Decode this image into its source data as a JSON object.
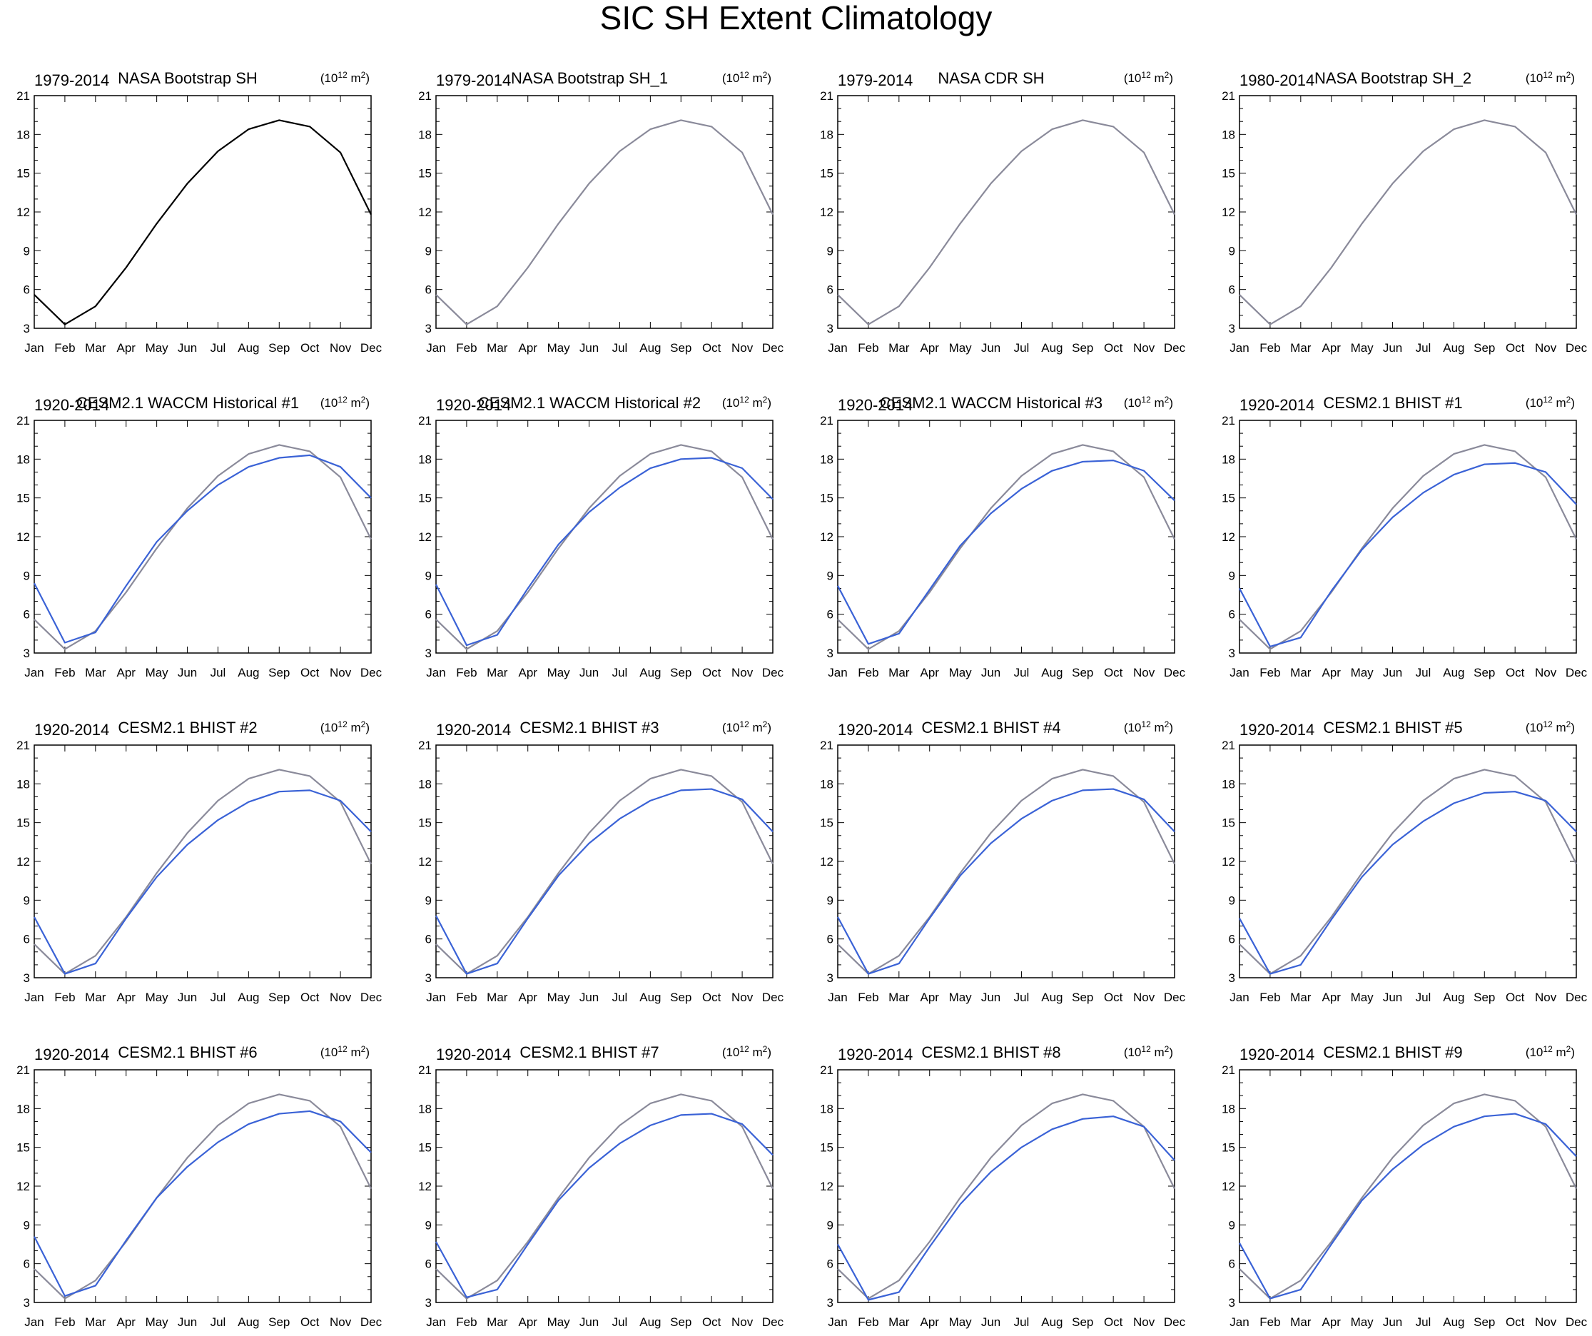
{
  "title": "SIC SH Extent Climatology",
  "units_label": {
    "base": "(10",
    "exp": "12",
    "unit": " m",
    "unit_exp": "2",
    "close": ")"
  },
  "colors": {
    "reference": "#8a8a9a",
    "model": "#3a62d6",
    "reference_first": "#000000",
    "grid_axis": "#000000"
  },
  "chart_data": {
    "type": "line",
    "layout": "4x4 panel grid",
    "categories": [
      "Jan",
      "Feb",
      "Mar",
      "Apr",
      "May",
      "Jun",
      "Jul",
      "Aug",
      "Sep",
      "Oct",
      "Nov",
      "Dec"
    ],
    "ylim": [
      3,
      21
    ],
    "yticks": [
      3,
      6,
      9,
      12,
      15,
      18,
      21
    ],
    "reference": [
      5.6,
      3.3,
      4.7,
      7.7,
      11.1,
      14.2,
      16.7,
      18.4,
      19.1,
      18.6,
      16.6,
      11.8
    ],
    "panels": [
      {
        "years": "1979-2014",
        "label": "NASA Bootstrap SH",
        "values": null
      },
      {
        "years": "1979-2014",
        "label": "NASA Bootstrap SH_1",
        "values": null
      },
      {
        "years": "1979-2014",
        "label": "NASA CDR SH",
        "values": null
      },
      {
        "years": "1980-2014",
        "label": "NASA Bootstrap SH_2",
        "values": null
      },
      {
        "years": "1920-2014",
        "label": "CESM2.1 WACCM Historical #1",
        "values": [
          8.4,
          3.8,
          4.6,
          8.2,
          11.6,
          14.0,
          16.0,
          17.4,
          18.1,
          18.3,
          17.4,
          15.0
        ]
      },
      {
        "years": "1920-2014",
        "label": "CESM2.1 WACCM Historical #2",
        "values": [
          8.3,
          3.6,
          4.4,
          8.0,
          11.4,
          13.9,
          15.8,
          17.3,
          18.0,
          18.1,
          17.3,
          14.9
        ]
      },
      {
        "years": "1920-2014",
        "label": "CESM2.1 WACCM Historical #3",
        "values": [
          8.2,
          3.7,
          4.5,
          7.9,
          11.3,
          13.8,
          15.7,
          17.1,
          17.8,
          17.9,
          17.1,
          14.8
        ]
      },
      {
        "years": "1920-2014",
        "label": "CESM2.1 BHIST #1",
        "values": [
          8.0,
          3.5,
          4.2,
          7.8,
          11.0,
          13.5,
          15.4,
          16.8,
          17.6,
          17.7,
          17.0,
          14.5
        ]
      },
      {
        "years": "1920-2014",
        "label": "CESM2.1 BHIST #2",
        "values": [
          7.7,
          3.3,
          4.1,
          7.6,
          10.8,
          13.3,
          15.2,
          16.6,
          17.4,
          17.5,
          16.7,
          14.3
        ]
      },
      {
        "years": "1920-2014",
        "label": "CESM2.1 BHIST #3",
        "values": [
          7.8,
          3.3,
          4.1,
          7.6,
          10.9,
          13.4,
          15.3,
          16.7,
          17.5,
          17.6,
          16.8,
          14.3
        ]
      },
      {
        "years": "1920-2014",
        "label": "CESM2.1 BHIST #4",
        "values": [
          7.7,
          3.3,
          4.1,
          7.6,
          10.9,
          13.4,
          15.3,
          16.7,
          17.5,
          17.6,
          16.8,
          14.3
        ]
      },
      {
        "years": "1920-2014",
        "label": "CESM2.1 BHIST #5",
        "values": [
          7.6,
          3.3,
          4.0,
          7.5,
          10.8,
          13.3,
          15.1,
          16.5,
          17.3,
          17.4,
          16.7,
          14.3
        ]
      },
      {
        "years": "1920-2014",
        "label": "CESM2.1 BHIST #6",
        "values": [
          8.1,
          3.5,
          4.3,
          7.8,
          11.1,
          13.5,
          15.4,
          16.8,
          17.6,
          17.8,
          17.0,
          14.6
        ]
      },
      {
        "years": "1920-2014",
        "label": "CESM2.1 BHIST #7",
        "values": [
          7.7,
          3.4,
          4.0,
          7.5,
          10.9,
          13.4,
          15.3,
          16.7,
          17.5,
          17.6,
          16.8,
          14.4
        ]
      },
      {
        "years": "1920-2014",
        "label": "CESM2.1 BHIST #8",
        "values": [
          7.5,
          3.2,
          3.8,
          7.3,
          10.6,
          13.1,
          15.0,
          16.4,
          17.2,
          17.4,
          16.6,
          14.0
        ]
      },
      {
        "years": "1920-2014",
        "label": "CESM2.1 BHIST #9",
        "values": [
          7.6,
          3.3,
          4.0,
          7.5,
          10.9,
          13.3,
          15.2,
          16.6,
          17.4,
          17.6,
          16.8,
          14.3
        ]
      }
    ]
  }
}
